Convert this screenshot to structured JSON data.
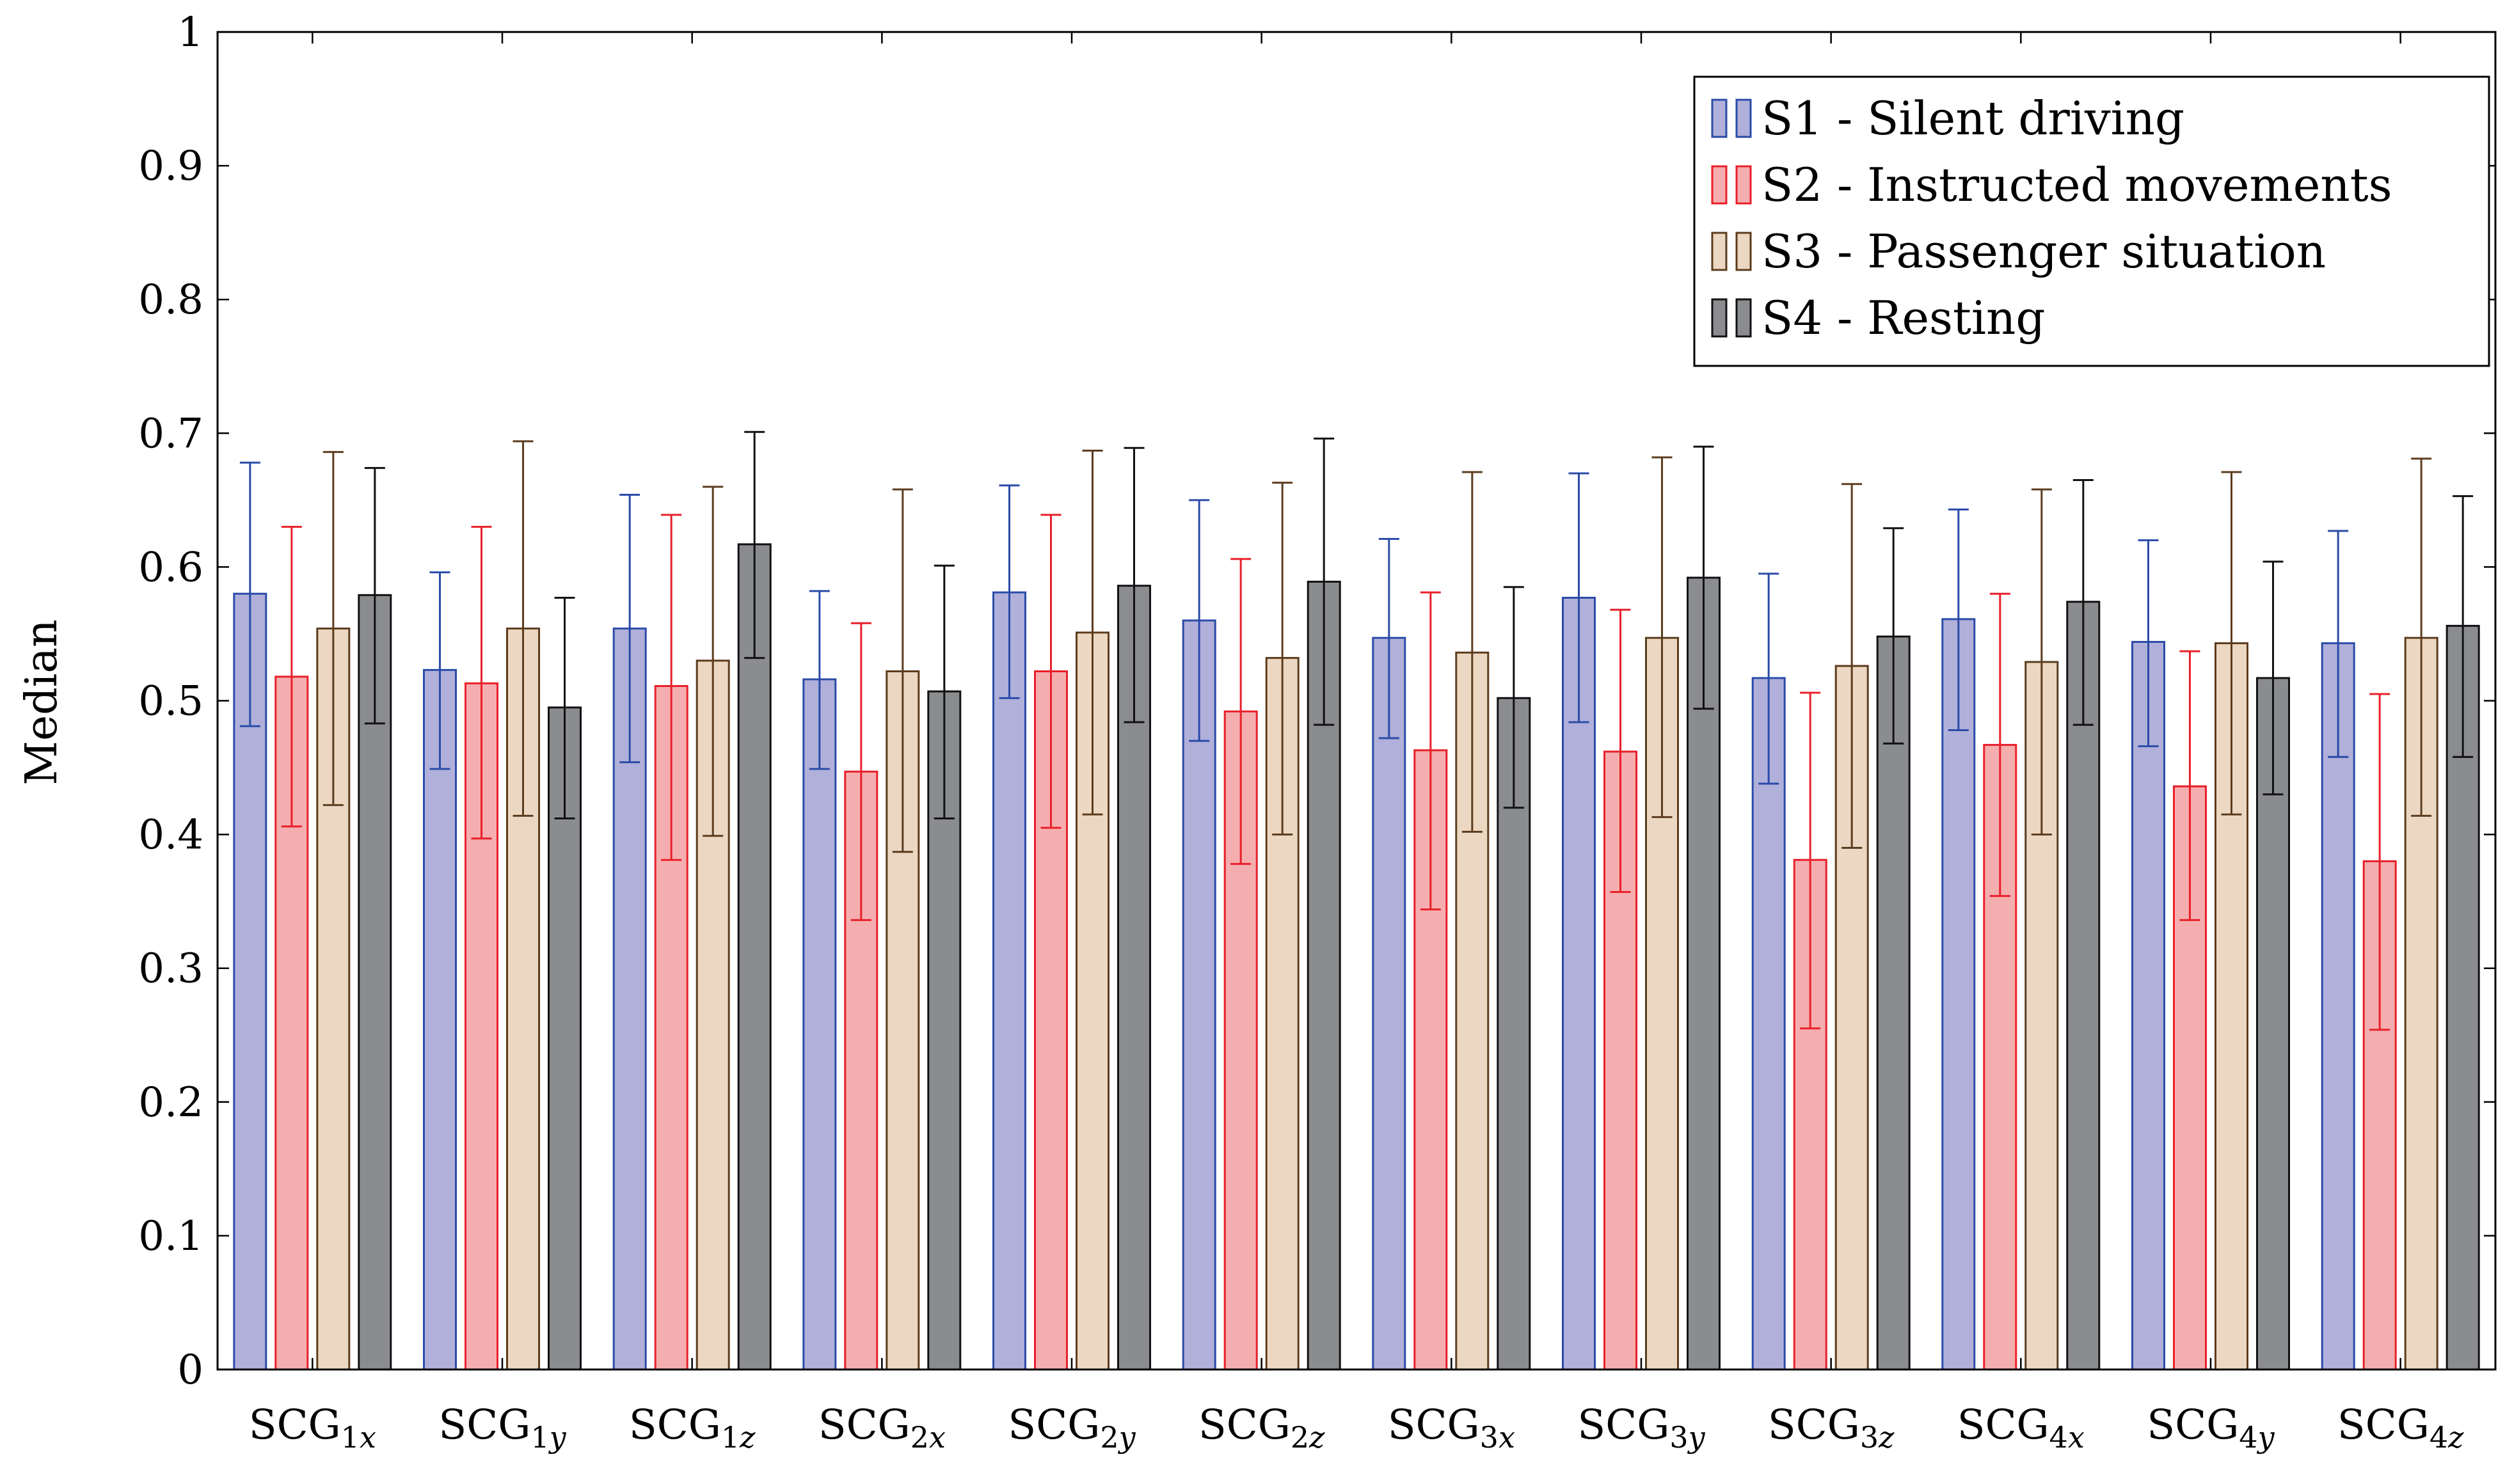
{
  "chart_data": {
    "type": "bar",
    "title": "",
    "xlabel": "",
    "ylabel": "Median",
    "ylim": [
      0,
      1
    ],
    "yticks": [
      0,
      0.1,
      0.2,
      0.3,
      0.4,
      0.5,
      0.6,
      0.7,
      0.8,
      0.9,
      1
    ],
    "ytick_labels": [
      "0",
      "0.1",
      "0.2",
      "0.3",
      "0.4",
      "0.5",
      "0.6",
      "0.7",
      "0.8",
      "0.9",
      "1"
    ],
    "categories": [
      {
        "base": "SCG",
        "sub": "1x",
        "num": "1",
        "axis": "x"
      },
      {
        "base": "SCG",
        "sub": "1y",
        "num": "1",
        "axis": "y"
      },
      {
        "base": "SCG",
        "sub": "1z",
        "num": "1",
        "axis": "z"
      },
      {
        "base": "SCG",
        "sub": "2x",
        "num": "2",
        "axis": "x"
      },
      {
        "base": "SCG",
        "sub": "2y",
        "num": "2",
        "axis": "y"
      },
      {
        "base": "SCG",
        "sub": "2z",
        "num": "2",
        "axis": "z"
      },
      {
        "base": "SCG",
        "sub": "3x",
        "num": "3",
        "axis": "x"
      },
      {
        "base": "SCG",
        "sub": "3y",
        "num": "3",
        "axis": "y"
      },
      {
        "base": "SCG",
        "sub": "3z",
        "num": "3",
        "axis": "z"
      },
      {
        "base": "SCG",
        "sub": "4x",
        "num": "4",
        "axis": "x"
      },
      {
        "base": "SCG",
        "sub": "4y",
        "num": "4",
        "axis": "y"
      },
      {
        "base": "SCG",
        "sub": "4z",
        "num": "4",
        "axis": "z"
      }
    ],
    "series": [
      {
        "name": "S1 - Silent driving",
        "fill": "#b0b0da",
        "stroke": "#2b4ba8",
        "values": [
          0.58,
          0.523,
          0.554,
          0.516,
          0.581,
          0.56,
          0.547,
          0.577,
          0.517,
          0.561,
          0.544,
          0.543
        ],
        "err_low": [
          0.481,
          0.449,
          0.454,
          0.449,
          0.502,
          0.47,
          0.472,
          0.484,
          0.438,
          0.478,
          0.466,
          0.458
        ],
        "err_high": [
          0.678,
          0.596,
          0.654,
          0.582,
          0.661,
          0.65,
          0.621,
          0.67,
          0.595,
          0.643,
          0.62,
          0.627
        ]
      },
      {
        "name": "S2 - Instructed movements",
        "fill": "#f5aeb0",
        "stroke": "#e8202a",
        "values": [
          0.518,
          0.513,
          0.511,
          0.447,
          0.522,
          0.492,
          0.463,
          0.462,
          0.381,
          0.467,
          0.436,
          0.38
        ],
        "err_low": [
          0.406,
          0.397,
          0.381,
          0.336,
          0.405,
          0.378,
          0.344,
          0.357,
          0.255,
          0.354,
          0.336,
          0.254
        ],
        "err_high": [
          0.63,
          0.63,
          0.639,
          0.558,
          0.639,
          0.606,
          0.581,
          0.568,
          0.506,
          0.58,
          0.537,
          0.505
        ]
      },
      {
        "name": "S3 - Passenger situation",
        "fill": "#ecd8c2",
        "stroke": "#5c3c1e",
        "values": [
          0.554,
          0.554,
          0.53,
          0.522,
          0.551,
          0.532,
          0.536,
          0.547,
          0.526,
          0.529,
          0.543,
          0.547
        ],
        "err_low": [
          0.422,
          0.414,
          0.399,
          0.387,
          0.415,
          0.4,
          0.402,
          0.413,
          0.39,
          0.4,
          0.415,
          0.414
        ],
        "err_high": [
          0.686,
          0.694,
          0.66,
          0.658,
          0.687,
          0.663,
          0.671,
          0.682,
          0.662,
          0.658,
          0.671,
          0.681
        ]
      },
      {
        "name": "S4 - Resting",
        "fill": "#8b8c8f",
        "stroke": "#111111",
        "values": [
          0.579,
          0.495,
          0.617,
          0.507,
          0.586,
          0.589,
          0.502,
          0.592,
          0.548,
          0.574,
          0.517,
          0.556
        ],
        "err_low": [
          0.483,
          0.412,
          0.532,
          0.412,
          0.484,
          0.482,
          0.42,
          0.494,
          0.468,
          0.482,
          0.43,
          0.458
        ],
        "err_high": [
          0.674,
          0.577,
          0.701,
          0.601,
          0.689,
          0.696,
          0.585,
          0.69,
          0.629,
          0.665,
          0.604,
          0.653
        ]
      }
    ],
    "grid": false,
    "legend_position": "top-right"
  }
}
